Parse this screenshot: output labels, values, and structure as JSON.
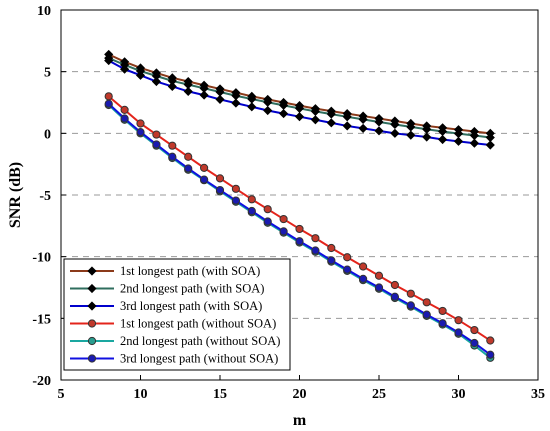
{
  "chart_data": {
    "type": "line",
    "xlabel": "m",
    "ylabel": "SNR (dB)",
    "xlim": [
      5,
      35
    ],
    "ylim": [
      -20,
      10
    ],
    "xticks": [
      "5",
      "10",
      "15",
      "20",
      "25",
      "30",
      "35"
    ],
    "yticks": [
      "10",
      "5",
      "0",
      "-5",
      "-10",
      "-15",
      "-20"
    ],
    "grid": "horizontal dashed",
    "legend_position": "bottom-left",
    "x": [
      8,
      9,
      10,
      11,
      12,
      13,
      14,
      15,
      16,
      17,
      18,
      19,
      20,
      21,
      22,
      23,
      24,
      25,
      26,
      27,
      28,
      29,
      30,
      31,
      32
    ],
    "series": [
      {
        "name": "1st longest path (with SOA)",
        "marker": "diamond",
        "line_color": "#8B3A1A",
        "marker_color": "#000000",
        "values": [
          6.4,
          5.8,
          5.3,
          4.9,
          4.5,
          4.2,
          3.9,
          3.6,
          3.3,
          3.0,
          2.75,
          2.5,
          2.25,
          2.0,
          1.8,
          1.6,
          1.4,
          1.2,
          1.0,
          0.8,
          0.6,
          0.45,
          0.3,
          0.15,
          0.0
        ]
      },
      {
        "name": "2nd longest path (with SOA)",
        "marker": "diamond",
        "line_color": "#2F6E5E",
        "marker_color": "#000000",
        "values": [
          6.1,
          5.55,
          5.05,
          4.65,
          4.25,
          3.95,
          3.65,
          3.35,
          3.05,
          2.78,
          2.52,
          2.27,
          2.02,
          1.78,
          1.56,
          1.34,
          1.13,
          0.92,
          0.72,
          0.52,
          0.33,
          0.15,
          -0.02,
          -0.18,
          -0.34
        ]
      },
      {
        "name": "3rd longest path (with SOA)",
        "marker": "diamond",
        "line_color": "#0000CC",
        "marker_color": "#000000",
        "values": [
          5.9,
          5.2,
          4.7,
          4.2,
          3.8,
          3.4,
          3.1,
          2.75,
          2.45,
          2.15,
          1.85,
          1.6,
          1.35,
          1.1,
          0.85,
          0.6,
          0.4,
          0.2,
          0.0,
          -0.15,
          -0.3,
          -0.5,
          -0.65,
          -0.8,
          -0.95
        ]
      },
      {
        "name": "1st longest path (without SOA)",
        "marker": "circle",
        "line_color": "#E3241B",
        "marker_color": "#C0392B",
        "values": [
          3.0,
          1.9,
          0.8,
          -0.1,
          -1.0,
          -1.9,
          -2.8,
          -3.65,
          -4.5,
          -5.35,
          -6.15,
          -6.95,
          -7.75,
          -8.5,
          -9.3,
          -10.05,
          -10.8,
          -11.55,
          -12.3,
          -13.0,
          -13.7,
          -14.4,
          -15.15,
          -15.95,
          -16.8
        ]
      },
      {
        "name": "2nd longest path (without SOA)",
        "marker": "circle",
        "line_color": "#1AA7A0",
        "marker_color": "#2A9D8F",
        "values": [
          2.3,
          1.1,
          0.0,
          -1.0,
          -2.0,
          -2.95,
          -3.8,
          -4.7,
          -5.55,
          -6.4,
          -7.25,
          -8.05,
          -8.85,
          -9.6,
          -10.4,
          -11.15,
          -11.9,
          -12.6,
          -13.35,
          -14.05,
          -14.8,
          -15.5,
          -16.25,
          -17.2,
          -18.2
        ]
      },
      {
        "name": "3rd longest path (without SOA)",
        "marker": "circle",
        "line_color": "#1010E0",
        "marker_color": "#1A1AB0",
        "values": [
          2.4,
          1.2,
          0.1,
          -0.9,
          -1.9,
          -2.85,
          -3.75,
          -4.6,
          -5.45,
          -6.3,
          -7.15,
          -7.95,
          -8.75,
          -9.5,
          -10.3,
          -11.05,
          -11.8,
          -12.5,
          -13.25,
          -13.95,
          -14.7,
          -15.4,
          -16.15,
          -17.0,
          -17.95
        ]
      }
    ]
  }
}
